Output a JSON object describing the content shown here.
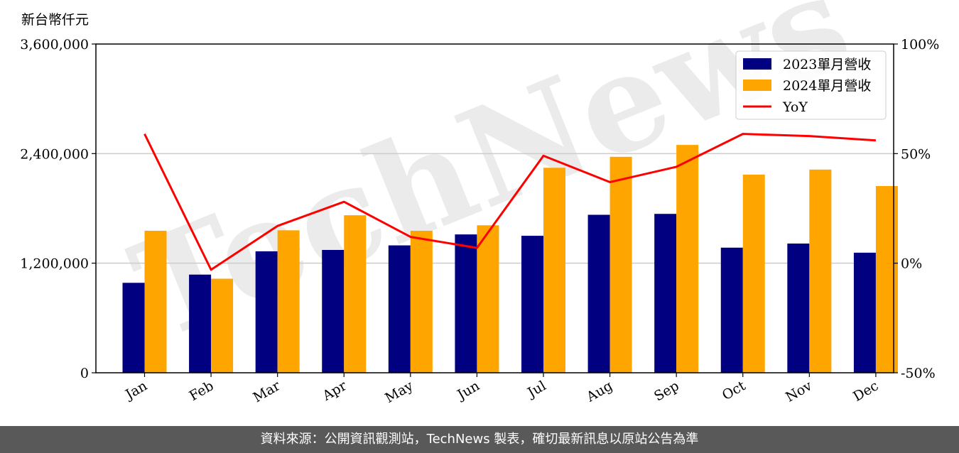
{
  "chart_data": {
    "type": "bar",
    "ylabel": "新台幣仟元",
    "categories": [
      "Jan",
      "Feb",
      "Mar",
      "Apr",
      "May",
      "Jun",
      "Jul",
      "Aug",
      "Sep",
      "Oct",
      "Nov",
      "Dec"
    ],
    "series": [
      {
        "name": "2023單月營收",
        "values": [
          985000,
          1075000,
          1330000,
          1345000,
          1395000,
          1515000,
          1500000,
          1730000,
          1740000,
          1370000,
          1415000,
          1315000
        ],
        "color": "#000080"
      },
      {
        "name": "2024單月營收",
        "values": [
          1555000,
          1030000,
          1560000,
          1725000,
          1555000,
          1615000,
          2245000,
          2365000,
          2495000,
          2170000,
          2225000,
          2045000
        ],
        "color": "#FFA500"
      }
    ],
    "line_series": {
      "name": "YoY",
      "values": [
        59,
        -3,
        17,
        28,
        12,
        7,
        49,
        37,
        44,
        59,
        58,
        56
      ],
      "color": "#FF0000"
    },
    "ylim": [
      0,
      3600000
    ],
    "yticks": [
      "0",
      "1,200,000",
      "2,400,000",
      "3,600,000"
    ],
    "ytick_values": [
      0,
      1200000,
      2400000,
      3600000
    ],
    "y2lim": [
      -50,
      100
    ],
    "y2ticks": [
      "-50%",
      "0%",
      "50%",
      "100%"
    ],
    "y2tick_values": [
      -50,
      0,
      50,
      100
    ],
    "legend_position": "top-right",
    "grid": "horizontal",
    "watermark": "TechNews"
  },
  "footer": {
    "text": "資料來源：公開資訊觀測站，TechNews 製表，確切最新訊息以原站公告為準"
  }
}
